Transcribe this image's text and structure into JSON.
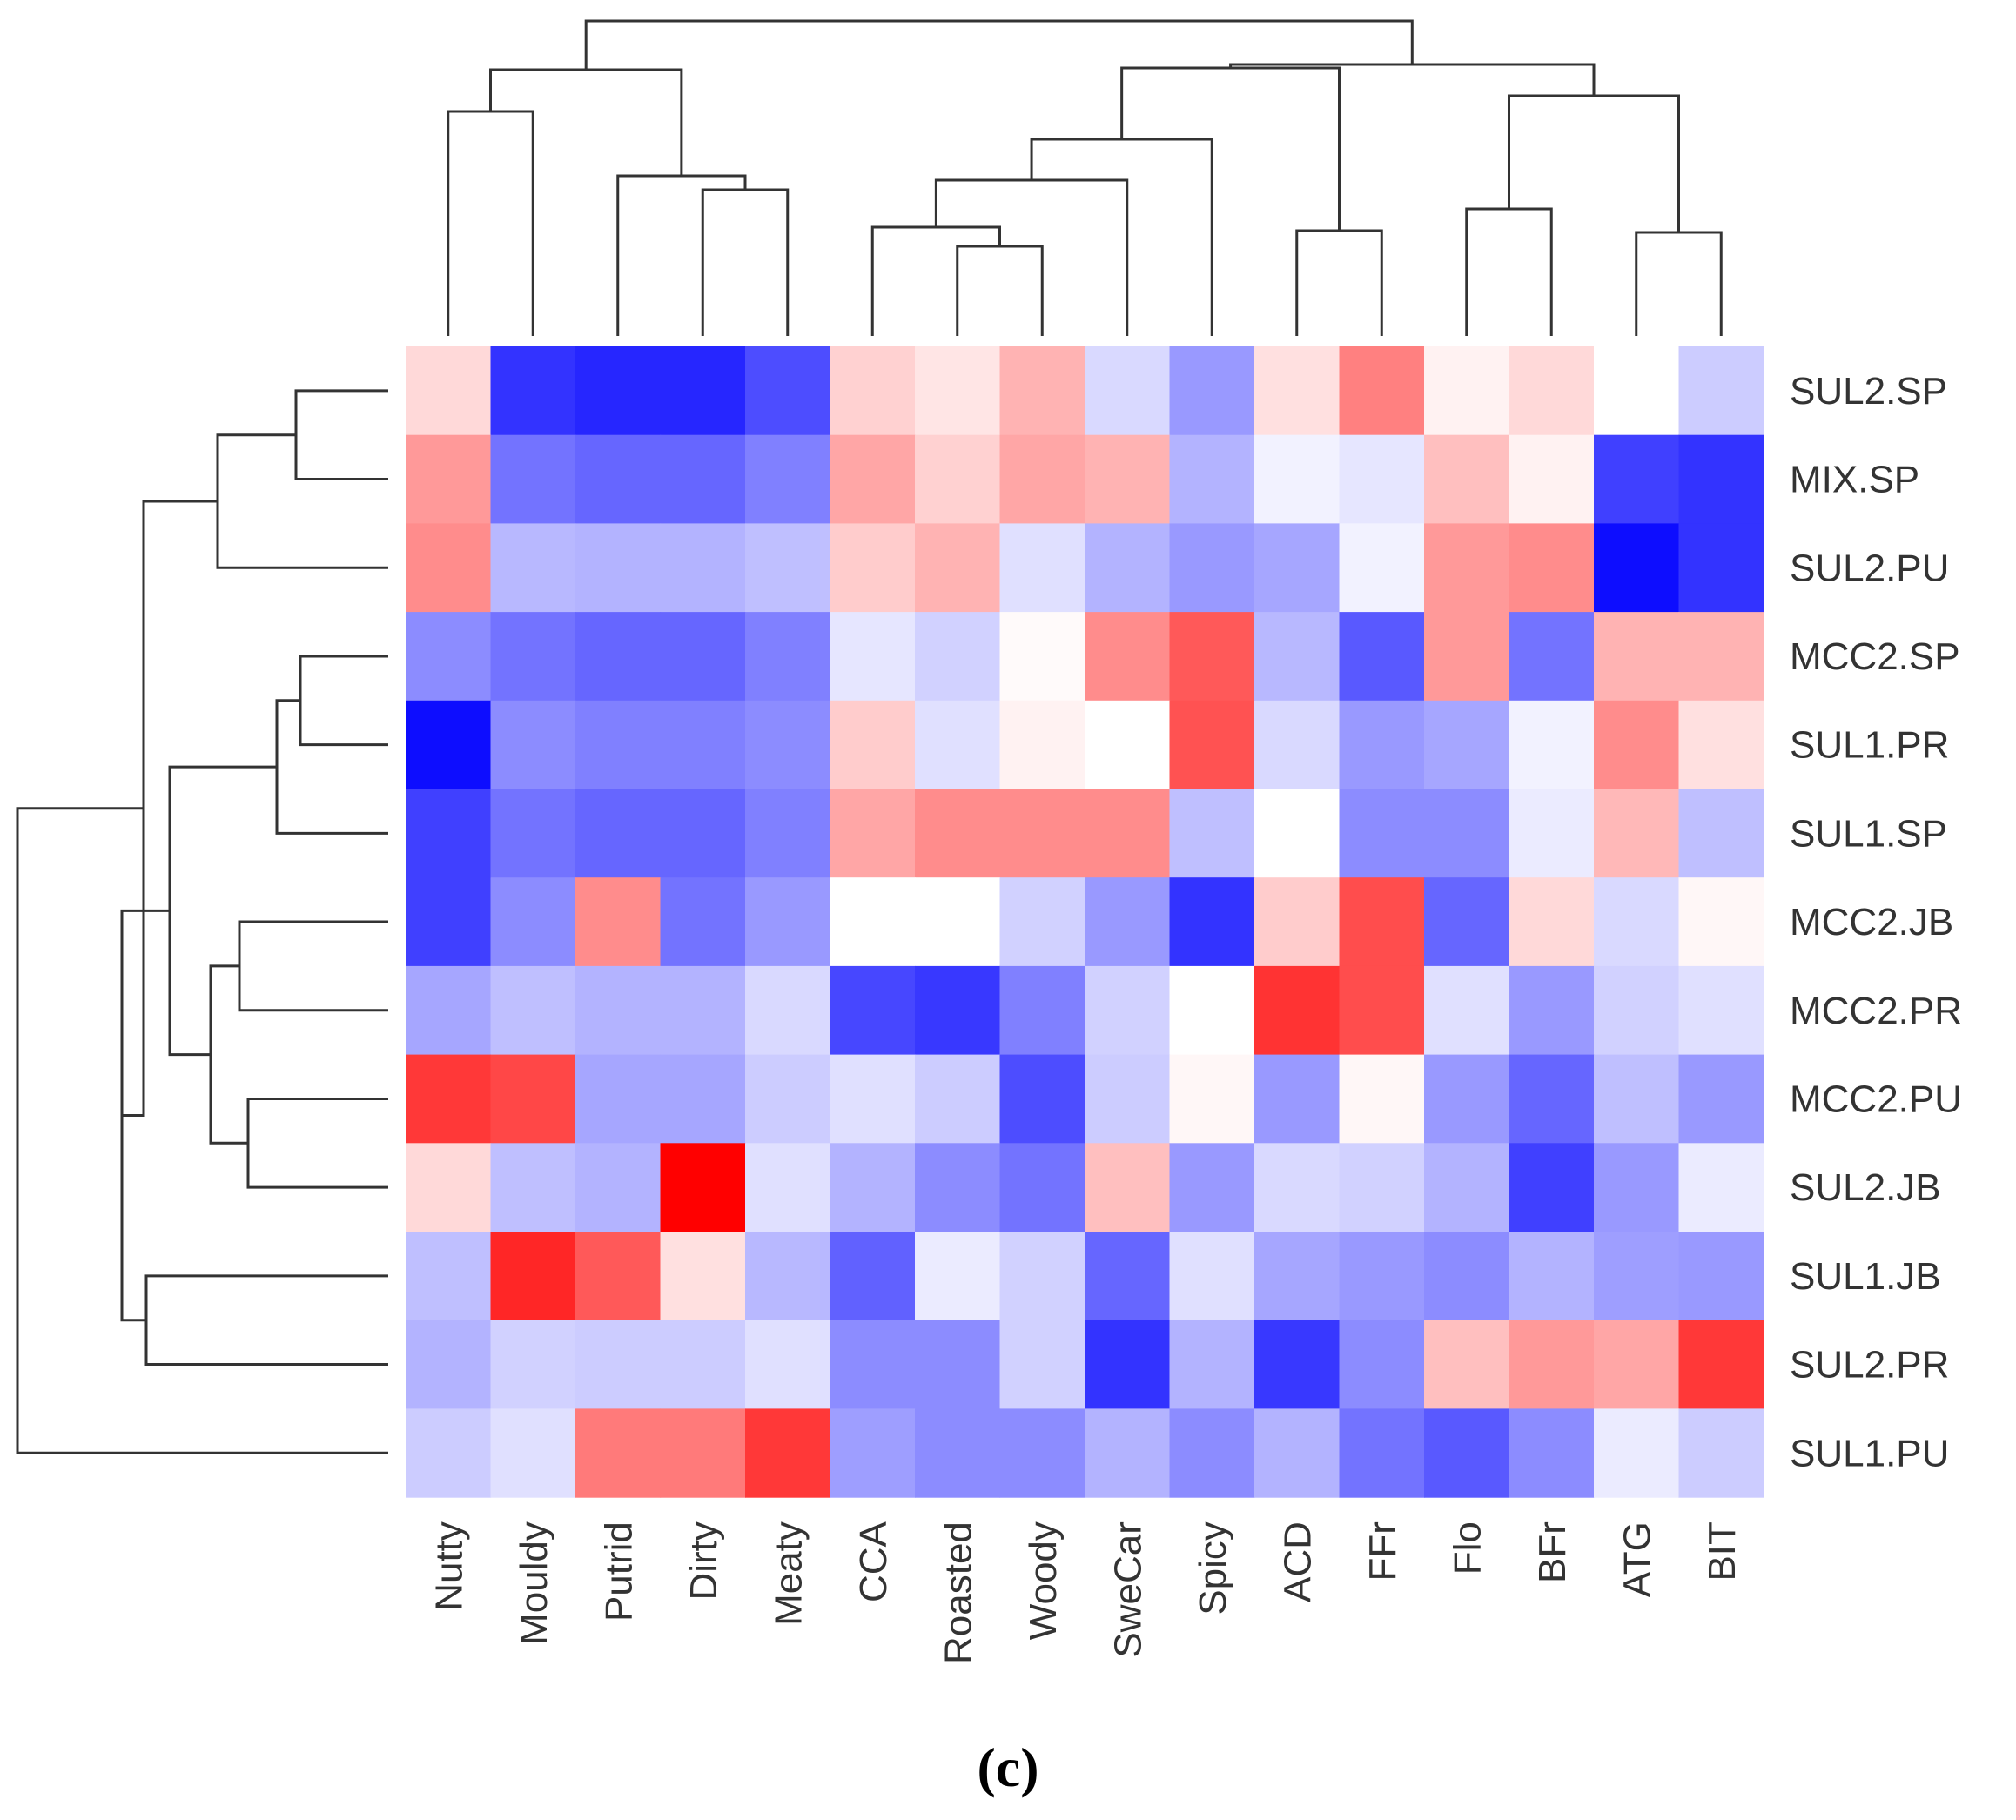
{
  "chart_data": {
    "type": "heatmap",
    "title": "",
    "panel_label": "(c)",
    "columns": [
      "Nutty",
      "Mouldy",
      "Putrid",
      "Dirty",
      "Meaty",
      "CCA",
      "Roasted",
      "Woody",
      "SweCar",
      "Spicy",
      "ACD",
      "FFr",
      "Flo",
      "BFr",
      "ATG",
      "BIT"
    ],
    "rows": [
      "SUL2.SP",
      "MIX.SP",
      "SUL2.PU",
      "MCC2.SP",
      "SUL1.PR",
      "SUL1.SP",
      "MCC2.JB",
      "MCC2.PR",
      "MCC2.PU",
      "SUL2.JB",
      "SUL1.JB",
      "SUL2.PR",
      "SUL1.PU"
    ],
    "value_range": [
      -1,
      1
    ],
    "color_scale": {
      "low": "#0000ff",
      "mid": "#ffffff",
      "high": "#ff0000"
    },
    "values": [
      [
        0.15,
        -0.8,
        -0.85,
        -0.85,
        -0.7,
        0.18,
        0.1,
        0.3,
        -0.15,
        -0.4,
        0.12,
        0.5,
        0.05,
        0.15,
        0.0,
        -0.2
      ],
      [
        0.4,
        -0.55,
        -0.6,
        -0.6,
        -0.5,
        0.35,
        0.18,
        0.35,
        0.3,
        -0.3,
        -0.05,
        -0.1,
        0.25,
        0.05,
        -0.75,
        -0.8
      ],
      [
        0.45,
        -0.28,
        -0.3,
        -0.3,
        -0.25,
        0.2,
        0.3,
        -0.12,
        -0.3,
        -0.4,
        -0.35,
        -0.05,
        0.4,
        0.45,
        -0.95,
        -0.8
      ],
      [
        -0.45,
        -0.55,
        -0.6,
        -0.6,
        -0.5,
        -0.1,
        -0.18,
        0.02,
        0.45,
        0.65,
        -0.28,
        -0.65,
        0.4,
        -0.55,
        0.3,
        0.3
      ],
      [
        -0.95,
        -0.45,
        -0.5,
        -0.5,
        -0.45,
        0.2,
        -0.12,
        0.05,
        0.0,
        0.68,
        -0.15,
        -0.4,
        -0.35,
        -0.05,
        0.45,
        0.12
      ],
      [
        -0.75,
        -0.55,
        -0.6,
        -0.6,
        -0.5,
        0.35,
        0.45,
        0.45,
        0.45,
        -0.25,
        0.0,
        -0.45,
        -0.45,
        -0.08,
        0.28,
        -0.25
      ],
      [
        -0.75,
        -0.45,
        0.45,
        -0.55,
        -0.4,
        0.0,
        0.0,
        -0.18,
        -0.4,
        -0.8,
        0.2,
        0.7,
        -0.6,
        0.15,
        -0.15,
        0.03
      ],
      [
        -0.35,
        -0.25,
        -0.3,
        -0.3,
        -0.15,
        -0.72,
        -0.78,
        -0.5,
        -0.18,
        0.0,
        0.8,
        0.7,
        -0.12,
        -0.4,
        -0.18,
        -0.12
      ],
      [
        0.78,
        0.72,
        -0.35,
        -0.35,
        -0.2,
        -0.12,
        -0.2,
        -0.7,
        -0.2,
        0.03,
        -0.4,
        0.03,
        -0.4,
        -0.6,
        -0.25,
        -0.4
      ],
      [
        0.15,
        -0.25,
        -0.3,
        1.0,
        -0.12,
        -0.3,
        -0.45,
        -0.55,
        0.25,
        -0.4,
        -0.15,
        -0.18,
        -0.3,
        -0.75,
        -0.4,
        -0.08
      ],
      [
        -0.25,
        0.85,
        0.65,
        0.12,
        -0.28,
        -0.62,
        -0.08,
        -0.18,
        -0.6,
        -0.12,
        -0.35,
        -0.4,
        -0.45,
        -0.3,
        -0.38,
        -0.4
      ],
      [
        -0.3,
        -0.18,
        -0.2,
        -0.2,
        -0.12,
        -0.45,
        -0.45,
        -0.18,
        -0.8,
        -0.3,
        -0.78,
        -0.45,
        0.25,
        0.4,
        0.35,
        0.78
      ],
      [
        -0.2,
        -0.12,
        0.52,
        0.52,
        0.78,
        -0.38,
        -0.45,
        -0.45,
        -0.3,
        -0.45,
        -0.3,
        -0.55,
        -0.65,
        -0.45,
        -0.08,
        -0.2
      ]
    ]
  }
}
